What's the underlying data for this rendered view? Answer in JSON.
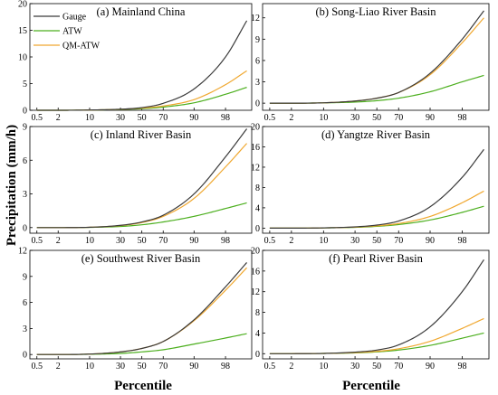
{
  "colors": {
    "Gauge": "#3a3a3a",
    "ATW": "#4caf1e",
    "QM-ATW": "#f0a830"
  },
  "chart_data": {
    "type": "line",
    "xlabel": "Percentile",
    "ylabel": "Precipitation (mm/h)",
    "x_scale": "normal-probability",
    "x_tick_labels": [
      "0.5",
      "2",
      "10",
      "30",
      "50",
      "70",
      "90",
      "98"
    ],
    "legend": {
      "placement": "top-left of panel (a)",
      "entries": [
        "Gauge",
        "ATW",
        "QM-ATW"
      ]
    },
    "panels": [
      {
        "title": "(a) Mainland China",
        "ylim": [
          0,
          20
        ],
        "y_ticks": [
          "0",
          "5",
          "10",
          "15",
          "20"
        ],
        "x": [
          0.5,
          2,
          10,
          30,
          50,
          70,
          90,
          98,
          99.5
        ],
        "series": [
          {
            "name": "Gauge",
            "values": [
              0.0,
              0.0,
              0.05,
              0.2,
              0.5,
              1.3,
              4.0,
              10.0,
              16.8
            ]
          },
          {
            "name": "ATW",
            "values": [
              0.0,
              0.0,
              0.05,
              0.15,
              0.3,
              0.6,
              1.4,
              3.0,
              4.3
            ]
          },
          {
            "name": "QM-ATW",
            "values": [
              0.0,
              0.0,
              0.05,
              0.18,
              0.4,
              0.8,
              2.0,
              4.8,
              7.4
            ]
          }
        ]
      },
      {
        "title": "(b) Song-Liao River Basin",
        "ylim": [
          -1,
          14
        ],
        "y_ticks": [
          "0",
          "3",
          "6",
          "9",
          "12"
        ],
        "x": [
          0.5,
          2,
          10,
          30,
          50,
          70,
          90,
          98,
          99.5
        ],
        "series": [
          {
            "name": "Gauge",
            "values": [
              0.0,
              0.0,
              0.05,
              0.3,
              0.7,
              1.5,
              4.2,
              9.0,
              13.0
            ]
          },
          {
            "name": "ATW",
            "values": [
              0.0,
              0.0,
              0.04,
              0.15,
              0.35,
              0.7,
              1.6,
              3.0,
              3.9
            ]
          },
          {
            "name": "QM-ATW",
            "values": [
              0.0,
              0.0,
              0.05,
              0.3,
              0.7,
              1.5,
              4.0,
              8.5,
              12.0
            ]
          }
        ]
      },
      {
        "title": "(c) Inland River Basin",
        "ylim": [
          -0.5,
          9
        ],
        "y_ticks": [
          "0",
          "3",
          "6",
          "9"
        ],
        "x": [
          0.5,
          2,
          10,
          30,
          50,
          70,
          90,
          98,
          99.5
        ],
        "series": [
          {
            "name": "Gauge",
            "values": [
              0.0,
              0.0,
              0.03,
              0.2,
              0.5,
              1.1,
              3.0,
              6.3,
              8.8
            ]
          },
          {
            "name": "ATW",
            "values": [
              0.0,
              0.0,
              0.02,
              0.1,
              0.25,
              0.5,
              1.0,
              1.7,
              2.2
            ]
          },
          {
            "name": "QM-ATW",
            "values": [
              0.0,
              0.0,
              0.03,
              0.18,
              0.45,
              1.0,
              2.6,
              5.4,
              7.5
            ]
          }
        ]
      },
      {
        "title": "(d) Yangtze River Basin",
        "ylim": [
          -1,
          20
        ],
        "y_ticks": [
          "0",
          "4",
          "8",
          "12",
          "16",
          "20"
        ],
        "x": [
          0.5,
          2,
          10,
          30,
          50,
          70,
          90,
          98,
          99.5
        ],
        "series": [
          {
            "name": "Gauge",
            "values": [
              0.0,
              0.0,
              0.05,
              0.25,
              0.6,
              1.4,
              4.2,
              10.0,
              15.5
            ]
          },
          {
            "name": "ATW",
            "values": [
              0.0,
              0.0,
              0.05,
              0.15,
              0.35,
              0.7,
              1.6,
              3.1,
              4.3
            ]
          },
          {
            "name": "QM-ATW",
            "values": [
              0.0,
              0.0,
              0.05,
              0.2,
              0.45,
              0.9,
              2.3,
              5.0,
              7.3
            ]
          }
        ]
      },
      {
        "title": "(e) Southwest River Basin",
        "ylim": [
          -0.5,
          12
        ],
        "y_ticks": [
          "0",
          "3",
          "6",
          "9",
          "12"
        ],
        "x": [
          0.5,
          2,
          10,
          30,
          50,
          70,
          90,
          98,
          99.5
        ],
        "series": [
          {
            "name": "Gauge",
            "values": [
              0.0,
              0.0,
              0.05,
              0.3,
              0.7,
              1.5,
              4.0,
              7.8,
              10.6
            ]
          },
          {
            "name": "ATW",
            "values": [
              0.0,
              0.0,
              0.03,
              0.12,
              0.3,
              0.55,
              1.2,
              1.9,
              2.4
            ]
          },
          {
            "name": "QM-ATW",
            "values": [
              0.0,
              0.0,
              0.05,
              0.3,
              0.7,
              1.5,
              3.9,
              7.4,
              10.0
            ]
          }
        ]
      },
      {
        "title": "(f) Pearl River Basin",
        "ylim": [
          -1,
          20
        ],
        "y_ticks": [
          "0",
          "4",
          "8",
          "12",
          "16",
          "20"
        ],
        "x": [
          0.5,
          2,
          10,
          30,
          50,
          70,
          90,
          98,
          99.5
        ],
        "series": [
          {
            "name": "Gauge",
            "values": [
              0.0,
              0.0,
              0.05,
              0.3,
              0.7,
              1.7,
              5.2,
              12.0,
              18.2
            ]
          },
          {
            "name": "ATW",
            "values": [
              0.0,
              0.0,
              0.05,
              0.15,
              0.35,
              0.7,
              1.6,
              3.0,
              4.0
            ]
          },
          {
            "name": "QM-ATW",
            "values": [
              0.0,
              0.0,
              0.05,
              0.2,
              0.45,
              0.95,
              2.4,
              4.9,
              6.8
            ]
          }
        ]
      }
    ]
  }
}
